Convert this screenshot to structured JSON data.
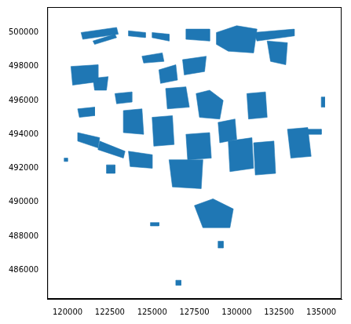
{
  "chart_data": {
    "type": "map",
    "color": "#1f77b4",
    "grid": false,
    "xlim": [
      118800,
      136200
    ],
    "ylim": [
      484300,
      501500
    ],
    "xticks": [
      120000,
      122500,
      125000,
      127500,
      130000,
      132500,
      135000
    ],
    "yticks": [
      486000,
      488000,
      490000,
      492000,
      494000,
      496000,
      498000,
      500000
    ],
    "polygons": [
      [
        [
          120800,
          500000
        ],
        [
          122900,
          500300
        ],
        [
          123000,
          499900
        ],
        [
          120900,
          499600
        ]
      ],
      [
        [
          121500,
          499500
        ],
        [
          122800,
          499900
        ],
        [
          122900,
          499700
        ],
        [
          121600,
          499300
        ]
      ],
      [
        [
          123600,
          500100
        ],
        [
          124600,
          500000
        ],
        [
          124600,
          499700
        ],
        [
          123600,
          499800
        ]
      ],
      [
        [
          125000,
          500000
        ],
        [
          126000,
          499900
        ],
        [
          126000,
          499500
        ],
        [
          125000,
          499700
        ]
      ],
      [
        [
          127000,
          500200
        ],
        [
          128400,
          500200
        ],
        [
          128400,
          499500
        ],
        [
          127000,
          499600
        ]
      ],
      [
        [
          128800,
          500000
        ],
        [
          130000,
          500400
        ],
        [
          131200,
          500200
        ],
        [
          131000,
          498800
        ],
        [
          129500,
          498900
        ],
        [
          128800,
          499300
        ]
      ],
      [
        [
          131000,
          500000
        ],
        [
          133400,
          500200
        ],
        [
          133400,
          499800
        ],
        [
          131200,
          499500
        ]
      ],
      [
        [
          131800,
          499500
        ],
        [
          133000,
          499400
        ],
        [
          132900,
          498100
        ],
        [
          132000,
          498300
        ]
      ],
      [
        [
          120200,
          498000
        ],
        [
          121800,
          498100
        ],
        [
          121800,
          497100
        ],
        [
          120300,
          496900
        ]
      ],
      [
        [
          121500,
          497300
        ],
        [
          122400,
          497400
        ],
        [
          122300,
          496600
        ],
        [
          121600,
          496600
        ]
      ],
      [
        [
          124400,
          498600
        ],
        [
          125600,
          498800
        ],
        [
          125700,
          498300
        ],
        [
          124500,
          498200
        ]
      ],
      [
        [
          125400,
          497800
        ],
        [
          126400,
          498100
        ],
        [
          126500,
          497200
        ],
        [
          125500,
          497000
        ]
      ],
      [
        [
          126800,
          498400
        ],
        [
          128200,
          498600
        ],
        [
          128100,
          497700
        ],
        [
          126900,
          497500
        ]
      ],
      [
        [
          122800,
          496400
        ],
        [
          123800,
          496500
        ],
        [
          123800,
          495900
        ],
        [
          122900,
          495800
        ]
      ],
      [
        [
          125800,
          496700
        ],
        [
          127000,
          496800
        ],
        [
          127200,
          495600
        ],
        [
          125900,
          495500
        ]
      ],
      [
        [
          127600,
          496400
        ],
        [
          128400,
          496600
        ],
        [
          129200,
          496000
        ],
        [
          129000,
          494900
        ],
        [
          127800,
          495000
        ]
      ],
      [
        [
          130600,
          496400
        ],
        [
          131700,
          496500
        ],
        [
          131800,
          495000
        ],
        [
          130700,
          494900
        ]
      ],
      [
        [
          120600,
          495500
        ],
        [
          121600,
          495600
        ],
        [
          121600,
          495100
        ],
        [
          120700,
          495000
        ]
      ],
      [
        [
          123300,
          495400
        ],
        [
          124400,
          495500
        ],
        [
          124500,
          494000
        ],
        [
          123300,
          494100
        ]
      ],
      [
        [
          125000,
          495000
        ],
        [
          126200,
          495100
        ],
        [
          126300,
          493400
        ],
        [
          125100,
          493300
        ]
      ],
      [
        [
          127000,
          494000
        ],
        [
          128400,
          494100
        ],
        [
          128500,
          492600
        ],
        [
          127100,
          492500
        ]
      ],
      [
        [
          128900,
          494700
        ],
        [
          129900,
          494900
        ],
        [
          130000,
          493700
        ],
        [
          129000,
          493500
        ]
      ],
      [
        [
          129500,
          493600
        ],
        [
          130900,
          493800
        ],
        [
          131000,
          492000
        ],
        [
          129600,
          491800
        ]
      ],
      [
        [
          131000,
          493500
        ],
        [
          132200,
          493600
        ],
        [
          132300,
          491700
        ],
        [
          131100,
          491600
        ]
      ],
      [
        [
          133000,
          494300
        ],
        [
          134200,
          494400
        ],
        [
          134400,
          492700
        ],
        [
          133200,
          492600
        ]
      ],
      [
        [
          134200,
          494300
        ],
        [
          135000,
          494300
        ],
        [
          135000,
          494000
        ],
        [
          134200,
          494000
        ]
      ],
      [
        [
          120600,
          494100
        ],
        [
          121900,
          493800
        ],
        [
          121800,
          493200
        ],
        [
          120600,
          493600
        ]
      ],
      [
        [
          121900,
          493600
        ],
        [
          123400,
          493000
        ],
        [
          123300,
          492600
        ],
        [
          121800,
          493100
        ]
      ],
      [
        [
          123600,
          493000
        ],
        [
          125000,
          492800
        ],
        [
          125000,
          492000
        ],
        [
          123700,
          492100
        ]
      ],
      [
        [
          126000,
          492500
        ],
        [
          128000,
          492500
        ],
        [
          127900,
          490800
        ],
        [
          126200,
          490900
        ]
      ],
      [
        [
          122300,
          492200
        ],
        [
          122800,
          492200
        ],
        [
          122800,
          491700
        ],
        [
          122300,
          491700
        ]
      ],
      [
        [
          127500,
          489800
        ],
        [
          128600,
          490200
        ],
        [
          129800,
          489600
        ],
        [
          129600,
          488500
        ],
        [
          128000,
          488500
        ]
      ],
      [
        [
          126400,
          485400
        ],
        [
          126700,
          485400
        ],
        [
          126700,
          485100
        ],
        [
          126400,
          485100
        ]
      ],
      [
        [
          128900,
          487700
        ],
        [
          129200,
          487700
        ],
        [
          129200,
          487300
        ],
        [
          128900,
          487300
        ]
      ],
      [
        [
          124900,
          488800
        ],
        [
          125400,
          488800
        ],
        [
          125400,
          488600
        ],
        [
          124900,
          488600
        ]
      ],
      [
        [
          119800,
          492600
        ],
        [
          120000,
          492600
        ],
        [
          120000,
          492400
        ],
        [
          119800,
          492400
        ]
      ],
      [
        [
          135000,
          496200
        ],
        [
          135200,
          496200
        ],
        [
          135200,
          495600
        ],
        [
          135000,
          495600
        ]
      ]
    ]
  }
}
